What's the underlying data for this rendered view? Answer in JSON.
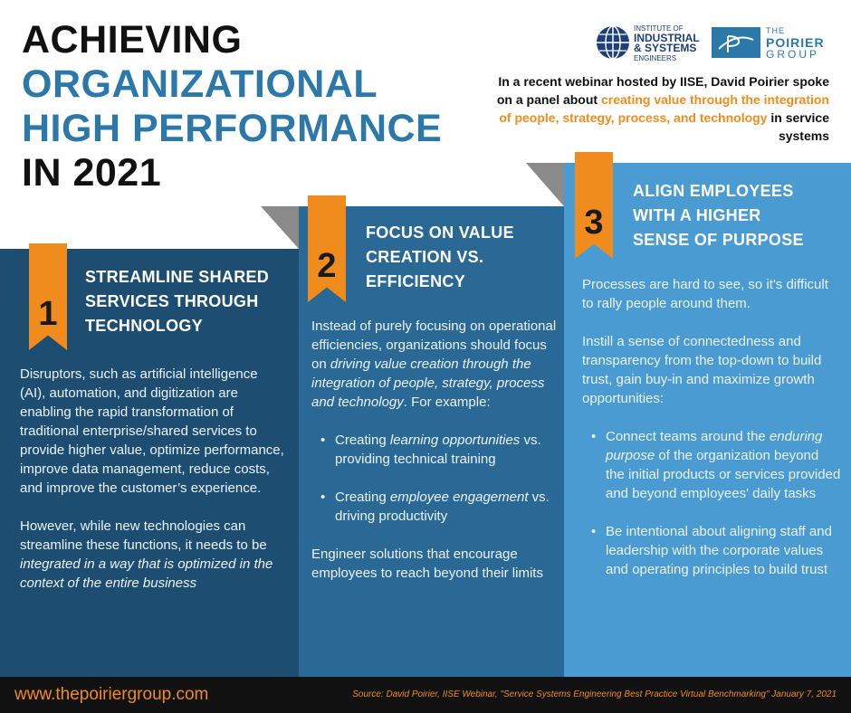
{
  "title": {
    "line1": "ACHIEVING",
    "line2": "ORGANIZATIONAL",
    "line3": "HIGH PERFORMANCE",
    "line4": "IN 2021"
  },
  "logos": {
    "iise_line1": "INSTITUTE OF",
    "iise_line2": "INDUSTRIAL",
    "iise_line3": "& SYSTEMS",
    "iise_line4": "ENGINEERS",
    "pg_line1": "THE",
    "pg_line2": "POIRIER",
    "pg_line3": "GROUP"
  },
  "intro": {
    "part1": "In a recent webinar hosted by IISE, David Poirier spoke on a panel about ",
    "highlight": "creating value through the integration of people, strategy, process, and technology",
    "part2": " in service systems"
  },
  "step1": {
    "number": "1",
    "heading_line1": "STREAMLINE SHARED",
    "heading_line2": "SERVICES THROUGH",
    "heading_line3": "TECHNOLOGY",
    "para1": "Disruptors, such as artificial intelligence (AI), automation, and digitization are enabling the rapid transformation of traditional enterprise/shared services to provide higher value, optimize performance, improve data management, reduce costs, and improve the customer’s experience.",
    "para2_start": "However, while new technologies can streamline these functions, it needs to be ",
    "para2_em": "integrated in a way that is optimized in the context of the entire business"
  },
  "step2": {
    "number": "2",
    "heading_line1": "FOCUS ON VALUE",
    "heading_line2": "CREATION VS.",
    "heading_line3": "EFFICIENCY",
    "intro_start": "Instead of purely focusing on operational efficiencies, organizations should focus on ",
    "intro_em": "driving value creation through the integration of people, strategy, process and technology",
    "intro_end": ". For example:",
    "bullet1_start": "Creating ",
    "bullet1_em": "learning opportunities",
    "bullet1_end": " vs. providing technical training",
    "bullet2_start": "Creating ",
    "bullet2_em": "employee engagement",
    "bullet2_end": " vs. driving productivity",
    "closing": "Engineer solutions that encourage employees to reach beyond their limits"
  },
  "step3": {
    "number": "3",
    "heading_line1": "ALIGN EMPLOYEES",
    "heading_line2": "WITH A HIGHER",
    "heading_line3": "SENSE OF PURPOSE",
    "para1": "Processes are hard to see, so it's difficult to rally people around them.",
    "para2": "Instill a sense of connectedness and transparency from the top-down to build trust, gain buy-in and maximize growth opportunities:",
    "bullet1_start": "Connect teams around the ",
    "bullet1_em": "enduring purpose",
    "bullet1_end": " of the organization beyond the initial products or services provided and beyond employees' daily tasks",
    "bullet2": "Be intentional about aligning staff and leadership with the corporate values and operating principles to build trust"
  },
  "footer": {
    "url": "www.thepoiriergroup.com",
    "source": "Source: David Poirier, IISE Webinar, \"Service Systems Engineering Best Practice Virtual Benchmarking\" January 7, 2021"
  },
  "colors": {
    "orange": "#f08c1e",
    "navy": "#1d4e72",
    "mid_blue": "#2a6896",
    "light_blue": "#4a9bd2",
    "title_blue": "#2b78a9"
  }
}
